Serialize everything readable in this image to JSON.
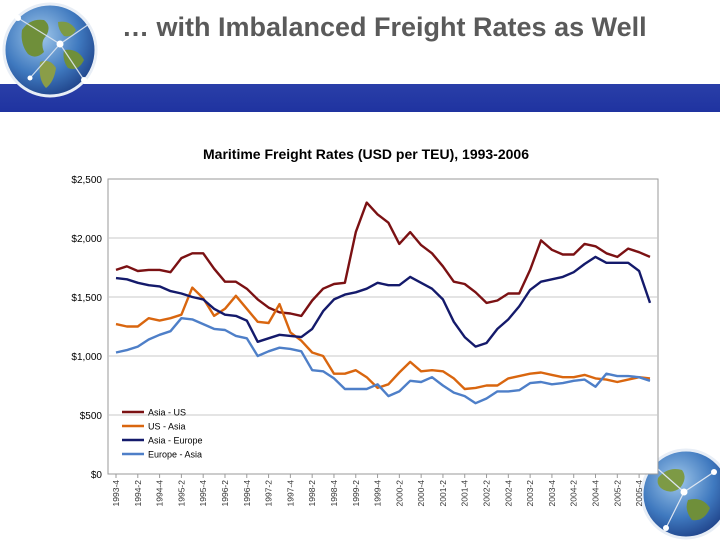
{
  "slide": {
    "title": "… with Imbalanced Freight Rates as Well"
  },
  "chart_data": {
    "type": "line",
    "title": "Maritime Freight Rates (USD per TEU), 1993-2006",
    "xlabel": "",
    "ylabel": "",
    "ylim": [
      0,
      2500
    ],
    "yticks": [
      "$0",
      "$500",
      "$1,000",
      "$1,500",
      "$2,000",
      "$2,500"
    ],
    "ytick_values": [
      0,
      500,
      1000,
      1500,
      2000,
      2500
    ],
    "grid": true,
    "legend_position": "bottom-left",
    "x": [
      "1993-4",
      "1994-1",
      "1994-2",
      "1994-3",
      "1994-4",
      "1995-1",
      "1995-2",
      "1995-3",
      "1995-4",
      "1996-1",
      "1996-2",
      "1996-3",
      "1996-4",
      "1997-1",
      "1997-2",
      "1997-3",
      "1997-4",
      "1998-1",
      "1998-2",
      "1998-3",
      "1998-4",
      "1999-1",
      "1999-2",
      "1999-3",
      "1999-4",
      "2000-1",
      "2000-2",
      "2000-3",
      "2000-4",
      "2001-1",
      "2001-2",
      "2001-3",
      "2001-4",
      "2002-1",
      "2002-2",
      "2002-3",
      "2002-4",
      "2003-1",
      "2003-2",
      "2003-3",
      "2003-4",
      "2004-1",
      "2004-2",
      "2004-3",
      "2004-4",
      "2005-1",
      "2005-2",
      "2005-3",
      "2005-4",
      "2006-1"
    ],
    "x_tick_labels": [
      "1993-4",
      "1994-2",
      "1994-4",
      "1995-2",
      "1995-4",
      "1996-2",
      "1996-4",
      "1997-2",
      "1997-4",
      "1998-2",
      "1998-4",
      "1999-2",
      "1999-4",
      "2000-2",
      "2000-4",
      "2001-2",
      "2001-4",
      "2002-2",
      "2002-4",
      "2003-2",
      "2003-4",
      "2004-2",
      "2004-4",
      "2005-2",
      "2005-4"
    ],
    "series": [
      {
        "name": "Asia - US",
        "color": "#7b1113",
        "values": [
          1730,
          1760,
          1720,
          1730,
          1730,
          1710,
          1830,
          1870,
          1870,
          1740,
          1630,
          1630,
          1570,
          1480,
          1410,
          1370,
          1360,
          1340,
          1470,
          1570,
          1610,
          1620,
          2050,
          2300,
          2200,
          2130,
          1950,
          2050,
          1940,
          1870,
          1760,
          1630,
          1610,
          1540,
          1450,
          1470,
          1530,
          1530,
          1730,
          1980,
          1900,
          1860,
          1860,
          1950,
          1930,
          1870,
          1840,
          1910,
          1880,
          1840
        ]
      },
      {
        "name": "US - Asia",
        "color": "#d9660f",
        "values": [
          1270,
          1250,
          1250,
          1320,
          1300,
          1320,
          1350,
          1580,
          1490,
          1340,
          1400,
          1510,
          1400,
          1290,
          1280,
          1440,
          1200,
          1130,
          1030,
          1000,
          850,
          850,
          880,
          820,
          730,
          760,
          860,
          950,
          870,
          880,
          870,
          810,
          720,
          730,
          750,
          750,
          810,
          830,
          850,
          860,
          840,
          820,
          820,
          840,
          810,
          800,
          780,
          800,
          820,
          810
        ]
      },
      {
        "name": "Asia - Europe",
        "color": "#141a6b",
        "values": [
          1660,
          1650,
          1620,
          1600,
          1590,
          1550,
          1530,
          1500,
          1480,
          1400,
          1350,
          1340,
          1300,
          1120,
          1150,
          1180,
          1170,
          1160,
          1230,
          1380,
          1480,
          1520,
          1540,
          1570,
          1620,
          1600,
          1600,
          1670,
          1620,
          1570,
          1480,
          1290,
          1160,
          1080,
          1110,
          1230,
          1310,
          1420,
          1560,
          1630,
          1650,
          1670,
          1710,
          1780,
          1840,
          1790,
          1790,
          1790,
          1720,
          1450
        ]
      },
      {
        "name": "Europe - Asia",
        "color": "#4e7fc8",
        "values": [
          1030,
          1050,
          1080,
          1140,
          1180,
          1210,
          1320,
          1310,
          1270,
          1230,
          1220,
          1170,
          1150,
          1000,
          1040,
          1070,
          1060,
          1040,
          880,
          870,
          810,
          720,
          720,
          720,
          760,
          660,
          700,
          790,
          780,
          820,
          750,
          690,
          660,
          600,
          640,
          700,
          700,
          710,
          770,
          780,
          760,
          770,
          790,
          800,
          740,
          850,
          830,
          830,
          820,
          790
        ]
      }
    ]
  }
}
